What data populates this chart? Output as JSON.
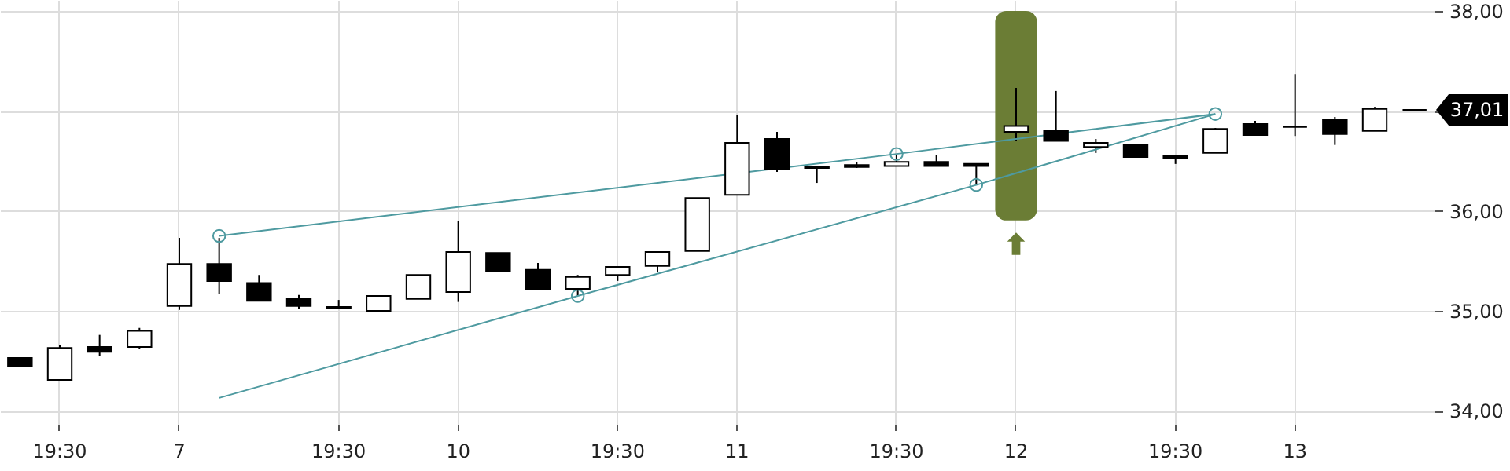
{
  "chart_data": {
    "type": "candlestick",
    "categories": [
      null,
      "19:30",
      null,
      null,
      "7",
      null,
      null,
      null,
      "19:30",
      null,
      null,
      "10",
      null,
      null,
      null,
      "19:30",
      null,
      null,
      "11",
      null,
      null,
      null,
      "19:30",
      null,
      null,
      "12",
      null,
      null,
      null,
      "19:30",
      null,
      null,
      "13",
      null,
      null,
      null
    ],
    "ohlc": [
      [
        34.53,
        34.53,
        34.44,
        34.45
      ],
      [
        34.31,
        34.66,
        34.31,
        34.63
      ],
      [
        34.64,
        34.76,
        34.55,
        34.59
      ],
      [
        34.64,
        34.83,
        34.62,
        34.8
      ],
      [
        35.05,
        35.73,
        35.01,
        35.47
      ],
      [
        35.47,
        35.73,
        35.17,
        35.3
      ],
      [
        35.28,
        35.36,
        35.1,
        35.1
      ],
      [
        35.12,
        35.16,
        35.02,
        35.05
      ],
      [
        35.03,
        35.11,
        35.02,
        35.04
      ],
      [
        35.0,
        35.15,
        35.0,
        35.15
      ],
      [
        35.12,
        35.36,
        35.12,
        35.36
      ],
      [
        35.19,
        35.9,
        35.09,
        35.59
      ],
      [
        35.58,
        35.58,
        35.4,
        35.4
      ],
      [
        35.41,
        35.48,
        35.22,
        35.22
      ],
      [
        35.22,
        35.36,
        35.15,
        35.34
      ],
      [
        35.36,
        35.44,
        35.3,
        35.44
      ],
      [
        35.45,
        35.59,
        35.39,
        35.59
      ],
      [
        35.6,
        36.13,
        35.6,
        36.13
      ],
      [
        36.16,
        36.96,
        36.16,
        36.68
      ],
      [
        36.72,
        36.79,
        36.39,
        36.42
      ],
      [
        36.44,
        36.45,
        36.28,
        36.43
      ],
      [
        36.46,
        36.49,
        36.43,
        36.44
      ],
      [
        36.45,
        36.56,
        36.45,
        36.49
      ],
      [
        36.49,
        36.56,
        36.45,
        36.45
      ],
      [
        36.47,
        36.47,
        36.27,
        36.45
      ],
      [
        36.79,
        37.23,
        36.7,
        36.85
      ],
      [
        36.8,
        37.2,
        36.7,
        36.7
      ],
      [
        36.64,
        36.72,
        36.58,
        36.68
      ],
      [
        36.66,
        36.67,
        36.54,
        36.54
      ],
      [
        36.55,
        36.55,
        36.47,
        36.53
      ],
      [
        36.58,
        36.83,
        36.58,
        36.82
      ],
      [
        36.87,
        36.9,
        36.76,
        36.76
      ],
      [
        36.84,
        37.37,
        36.75,
        36.84
      ],
      [
        36.91,
        36.94,
        36.66,
        36.77
      ],
      [
        36.8,
        37.04,
        36.8,
        37.02
      ],
      [
        37.01,
        37.01,
        37.01,
        37.01
      ]
    ],
    "series": [
      {
        "type": "line",
        "color": "#4e9aa0",
        "marker": "none",
        "values": [
          null,
          null,
          null,
          null,
          null,
          35.75,
          null,
          null,
          null,
          null,
          null,
          null,
          null,
          null,
          null,
          null,
          null,
          null,
          null,
          null,
          null,
          null,
          36.57,
          null,
          null,
          null,
          null,
          null,
          null,
          null,
          36.97,
          null,
          null,
          null,
          null,
          null
        ]
      },
      {
        "type": "line",
        "color": "#4e9aa0",
        "marker": "none",
        "values": [
          null,
          null,
          null,
          null,
          null,
          34.13,
          null,
          null,
          null,
          null,
          null,
          null,
          null,
          null,
          35.15,
          null,
          null,
          null,
          null,
          null,
          null,
          null,
          null,
          null,
          36.26,
          null,
          null,
          null,
          null,
          null,
          36.97,
          null,
          null,
          null,
          null,
          null
        ]
      },
      {
        "type": "scatter",
        "color": "#4e9aa0",
        "marker": "circle",
        "values": [
          null,
          null,
          null,
          null,
          null,
          35.75,
          null,
          null,
          null,
          null,
          null,
          null,
          null,
          null,
          35.15,
          null,
          null,
          null,
          null,
          null,
          null,
          null,
          36.57,
          null,
          36.26,
          null,
          null,
          null,
          null,
          null,
          36.97,
          null,
          null,
          null,
          null,
          null
        ]
      }
    ],
    "ylim": [
      33.87,
      38.11
    ],
    "yticks": [
      {
        "value": 34,
        "label": "34,00"
      },
      {
        "value": 35,
        "label": "35,00"
      },
      {
        "value": 36,
        "label": "36,00"
      },
      {
        "value": 37,
        "label": null
      },
      {
        "value": 38,
        "label": "38,00"
      }
    ],
    "bands": [
      {
        "axis": "x",
        "from": "12",
        "to": "12",
        "color": "#6b7d35"
      }
    ],
    "annotations": [
      "37,01"
    ],
    "grid": true
  }
}
